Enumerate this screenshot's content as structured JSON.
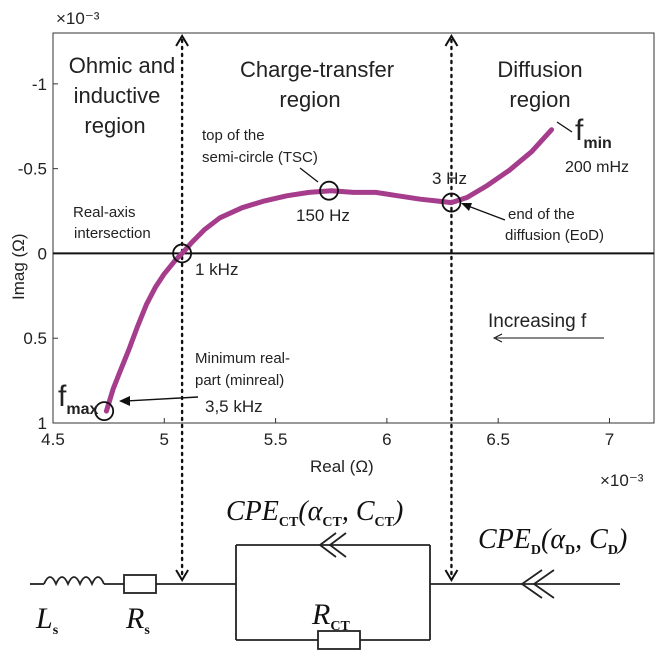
{
  "chart_data": {
    "type": "line",
    "xlabel": "Real (Ω)",
    "ylabel": "Imag (Ω)",
    "x_multiplier": "×10⁻³",
    "y_multiplier": "×10⁻³",
    "xlim": [
      4.5,
      7.2
    ],
    "ylim": [
      -1.3,
      1.0
    ],
    "y_reversed": true,
    "grid": false,
    "x_ticks": [
      "4.5",
      "5",
      "5.5",
      "6",
      "6.5",
      "7"
    ],
    "y_ticks": [
      "-1",
      "-0.5",
      "0",
      "0.5",
      "1"
    ],
    "series": [
      {
        "color": "#a53d8c",
        "points": [
          [
            4.74,
            0.93
          ],
          [
            4.77,
            0.8
          ],
          [
            4.8,
            0.7
          ],
          [
            4.84,
            0.57
          ],
          [
            4.88,
            0.43
          ],
          [
            4.92,
            0.3
          ],
          [
            4.96,
            0.2
          ],
          [
            5.0,
            0.12
          ],
          [
            5.05,
            0.04
          ],
          [
            5.08,
            0.0
          ],
          [
            5.12,
            -0.06
          ],
          [
            5.18,
            -0.14
          ],
          [
            5.25,
            -0.21
          ],
          [
            5.35,
            -0.27
          ],
          [
            5.45,
            -0.31
          ],
          [
            5.55,
            -0.34
          ],
          [
            5.65,
            -0.36
          ],
          [
            5.75,
            -0.37
          ],
          [
            5.85,
            -0.36
          ],
          [
            5.95,
            -0.36
          ],
          [
            6.05,
            -0.34
          ],
          [
            6.15,
            -0.32
          ],
          [
            6.22,
            -0.31
          ],
          [
            6.29,
            -0.3
          ],
          [
            6.36,
            -0.33
          ],
          [
            6.45,
            -0.4
          ],
          [
            6.55,
            -0.49
          ],
          [
            6.65,
            -0.6
          ],
          [
            6.74,
            -0.73
          ]
        ]
      }
    ],
    "markers": [
      {
        "label": "1 kHz",
        "x": 5.08,
        "y": 0.0
      },
      {
        "label": "150 Hz",
        "x": 5.74,
        "y": -0.37
      },
      {
        "label": "3 Hz",
        "x": 6.29,
        "y": -0.3
      },
      {
        "label": "3,5 kHz",
        "x": 4.73,
        "y": 0.93
      }
    ],
    "region_boundaries_x": [
      5.08,
      6.29
    ],
    "regions": [
      {
        "line1": "Ohmic and",
        "line2": "inductive",
        "line3": "region"
      },
      {
        "line1": "Charge-transfer",
        "line2": "region"
      },
      {
        "line1": "Diffusion",
        "line2": "region"
      }
    ],
    "annotations": {
      "real_axis_1": "Real-axis",
      "real_axis_2": "intersection",
      "tsc_1": "top of the",
      "tsc_2": "semi-circle (TSC)",
      "eod_1": "end of the",
      "eod_2": "diffusion (EoD)",
      "minreal_1": "Minimum real-",
      "minreal_2": "part (minreal)",
      "f_min": "f",
      "f_min_sub": "min",
      "f_min_value": "200 mHz",
      "f_max": "f",
      "f_max_sub": "max",
      "increasing": "Increasing f"
    }
  },
  "circuit": {
    "ls": "L",
    "ls_sub": "s",
    "rs": "R",
    "rs_sub": "s",
    "rct": "R",
    "rct_sub": "CT",
    "cpe_ct_pre": "CPE",
    "cpe_ct_sub": "CT",
    "cpe_ct_open": "(α",
    "cpe_ct_a_sub": "CT",
    "cpe_ct_mid": ", C",
    "cpe_ct_c_sub": "CT",
    "cpe_ct_close": ")",
    "cpe_d_pre": "CPE",
    "cpe_d_sub": "D",
    "cpe_d_open": "(α",
    "cpe_d_a_sub": "D",
    "cpe_d_mid": ", C",
    "cpe_d_c_sub": "D",
    "cpe_d_close": ")"
  }
}
